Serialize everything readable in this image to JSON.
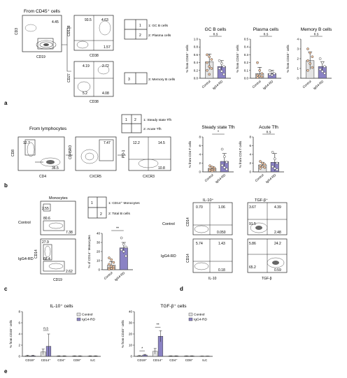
{
  "colors": {
    "control": "#e4e4e4",
    "igg4": "#8a82c4",
    "igg4_dark": "#6f67b0",
    "dot_control": "#f2c6a4",
    "dot_igg4": "#ffffff"
  },
  "group_labels": {
    "control": "Control",
    "igg4": "IgG4-RD"
  },
  "panel_letters": {
    "a": "a",
    "b": "b",
    "c": "c",
    "d": "d",
    "e": "e"
  },
  "panel_a": {
    "gate_title": "From CD45⁺ cells",
    "flow1": {
      "xlabel": "CD19",
      "ylabel": "CD3",
      "value": "4.45"
    },
    "flow2": {
      "xlabel": "CD38",
      "ylabel": "CD138",
      "q_tl": "93.5",
      "q_tr": "4.63",
      "q_bl": "",
      "q_br": "1.57"
    },
    "flow3": {
      "xlabel": "CD38",
      "ylabel": "CD27",
      "q_tl": "4.19",
      "q_tr": "2.72",
      "q_bl": "5.2",
      "q_br": "4.08"
    },
    "legend1": {
      "box1": "1",
      "box2": "2",
      "item1": "1: GC B cells",
      "item2": "2: Plasma cells"
    },
    "legend2": {
      "box": "3",
      "item": "3: Memory B cells"
    },
    "ytitle": "% from CD45⁺ cells",
    "charts": [
      {
        "title": "GC B cells",
        "sig": "n.s",
        "ymax": 1.0,
        "yticks": [
          "0.0",
          "0.2",
          "0.4",
          "0.6",
          "0.8",
          "1.0"
        ],
        "values": [
          0.42,
          0.3
        ],
        "err": [
          0.2,
          0.15
        ],
        "dots_c": [
          0.6,
          0.55,
          0.48,
          0.4,
          0.3,
          0.25,
          0.2,
          0.1
        ],
        "dots_i": [
          0.45,
          0.38,
          0.3,
          0.25,
          0.18,
          0.1
        ]
      },
      {
        "title": "Plasma cells",
        "sig": "n.s",
        "ymax": 0.5,
        "yticks": [
          "0.0",
          "0.1",
          "0.2",
          "0.3",
          "0.4",
          "0.5"
        ],
        "values": [
          0.06,
          0.06
        ],
        "err": [
          0.08,
          0.04
        ],
        "dots_c": [
          0.2,
          0.1,
          0.06,
          0.04,
          0.03,
          0.02,
          0.01
        ],
        "dots_i": [
          0.1,
          0.08,
          0.06,
          0.05,
          0.04
        ]
      },
      {
        "title": "Memory B cells",
        "sig": "n.s",
        "ymax": 4,
        "yticks": [
          "0",
          "1",
          "2",
          "3",
          "4"
        ],
        "values": [
          1.8,
          1.2
        ],
        "err": [
          0.9,
          0.5
        ],
        "dots_c": [
          3.0,
          2.6,
          2.2,
          1.8,
          1.5,
          1.1,
          0.8
        ],
        "dots_i": [
          2.0,
          1.6,
          1.2,
          0.9,
          0.7,
          0.5
        ]
      }
    ]
  },
  "panel_b": {
    "gate_title": "From lymphocytes",
    "flow1": {
      "xlabel": "CD4",
      "ylabel": "CD8",
      "q_tl": "12.7",
      "q_br": "36.5"
    },
    "flow2": {
      "xlabel": "CXCR5",
      "ylabel": "CD45RO",
      "value": "7.47"
    },
    "flow3": {
      "xlabel": "CXCR3",
      "ylabel": "PD-1",
      "q_tl": "12.2",
      "q_tr": "14.5",
      "q_bl": "",
      "q_br": "10.8"
    },
    "legend": {
      "box1": "1",
      "box2": "2",
      "item1": "1: Steady state Tfh",
      "item2": "2: Acute Tfh"
    },
    "ytitle": "% from CD4 T cells",
    "charts": [
      {
        "title": "Steady state Tfh",
        "sig": "*",
        "ymax": 8,
        "yticks": [
          "0",
          "2",
          "4",
          "6",
          "8"
        ],
        "values": [
          0.8,
          2.4
        ],
        "err": [
          0.4,
          1.8
        ],
        "dots_c": [
          1.4,
          1.1,
          0.9,
          0.7,
          0.5,
          0.4,
          0.3,
          0.2
        ],
        "dots_i": [
          5.2,
          3.5,
          2.2,
          1.5,
          1.0,
          0.6
        ]
      },
      {
        "title": "Acute Tfh",
        "sig": "n.s",
        "ymax": 8,
        "yticks": [
          "0",
          "2",
          "4",
          "6",
          "8"
        ],
        "values": [
          1.6,
          2.2
        ],
        "err": [
          0.6,
          2.0
        ],
        "dots_c": [
          2.4,
          2.0,
          1.7,
          1.4,
          1.2,
          1.0,
          0.8
        ],
        "dots_i": [
          4.5,
          3.0,
          2.0,
          1.2,
          0.8,
          0.5
        ]
      }
    ]
  },
  "panel_c": {
    "title": "Monocytes",
    "row_control": "Control",
    "row_igg4": "IgG4-RD",
    "xlabel": "CD19",
    "ylabel": "CD14",
    "ctrl_tl": "2.55",
    "ctrl_bl": "80.6",
    "ctrl_br": "7.38",
    "igg_tl": "27.9",
    "igg_bl": "68.4",
    "igg_br": "2.62",
    "legend": {
      "box1": "1",
      "box2": "2",
      "item1": "1: CD14⁺ Monocytes",
      "item2": "2: Total B cells"
    },
    "chart": {
      "title": "",
      "sig": "**",
      "ymax": 40,
      "yticks": [
        "0",
        "10",
        "20",
        "30",
        "40"
      ],
      "values": [
        5,
        24
      ],
      "err": [
        4,
        6
      ],
      "dots_c": [
        13,
        11,
        8,
        6,
        4,
        3,
        2,
        1.5,
        1,
        0.5
      ],
      "dots_i": [
        35,
        28,
        25,
        22,
        20,
        15
      ]
    },
    "ytitle": "% of CD14⁺ Monocytes"
  },
  "panel_d": {
    "col1": "IL-10⁺",
    "col2": "TGF-β⁺",
    "row_control": "Control",
    "row_igg4": "IgG4-RD",
    "xlabel1": "IL-10",
    "xlabel2": "TGF-β",
    "ylabel": "CD14",
    "p1": {
      "tl": "0.70",
      "tr": "1.06",
      "br": "0.050"
    },
    "p2": {
      "tl": "3.67",
      "tr": "4.39",
      "bl": "91.5",
      "br": "2.48"
    },
    "p3": {
      "tl": "5.74",
      "tr": "1.43",
      "br": "0.18"
    },
    "p4": {
      "tl": "5.86",
      "tr": "24.2",
      "bl": "65.2",
      "br": "0.59"
    }
  },
  "panel_e": {
    "ytitle": "% from CD45⁺ cells",
    "legend_control": "Control",
    "legend_igg4": "IgG4-RD",
    "charts": [
      {
        "title": "IL-10⁺ cells",
        "ymax": 8,
        "yticks": [
          "0",
          "2",
          "4",
          "6",
          "8"
        ],
        "categories": [
          "CD19⁺",
          "CD14⁺",
          "CD4⁺",
          "CD8⁺",
          "ILC"
        ],
        "control": [
          0.1,
          0.8,
          0.05,
          0.05,
          0.05
        ],
        "igg4": [
          0.1,
          1.8,
          0.05,
          0.05,
          0.05
        ],
        "err_c": [
          0.1,
          0.5,
          0.05,
          0.05,
          0.05
        ],
        "err_i": [
          0.1,
          2.2,
          0.05,
          0.05,
          0.05
        ],
        "sig": [
          "",
          "n.s",
          "",
          "",
          ""
        ]
      },
      {
        "title": "TGF-β⁺ cells",
        "ymax": 40,
        "yticks": [
          "0",
          "10",
          "20",
          "30",
          "40"
        ],
        "categories": [
          "CD19⁺",
          "CD14⁺",
          "CD4⁺",
          "CD8⁺",
          "ILC"
        ],
        "control": [
          0.5,
          4.5,
          0.3,
          0.3,
          0.2
        ],
        "igg4": [
          1.2,
          18,
          0.3,
          0.3,
          0.2
        ],
        "err_c": [
          0.3,
          2.5,
          0.2,
          0.2,
          0.1
        ],
        "err_i": [
          0.6,
          5,
          0.2,
          0.2,
          0.1
        ],
        "sig": [
          "*",
          "**",
          "",
          "",
          ""
        ]
      }
    ]
  }
}
